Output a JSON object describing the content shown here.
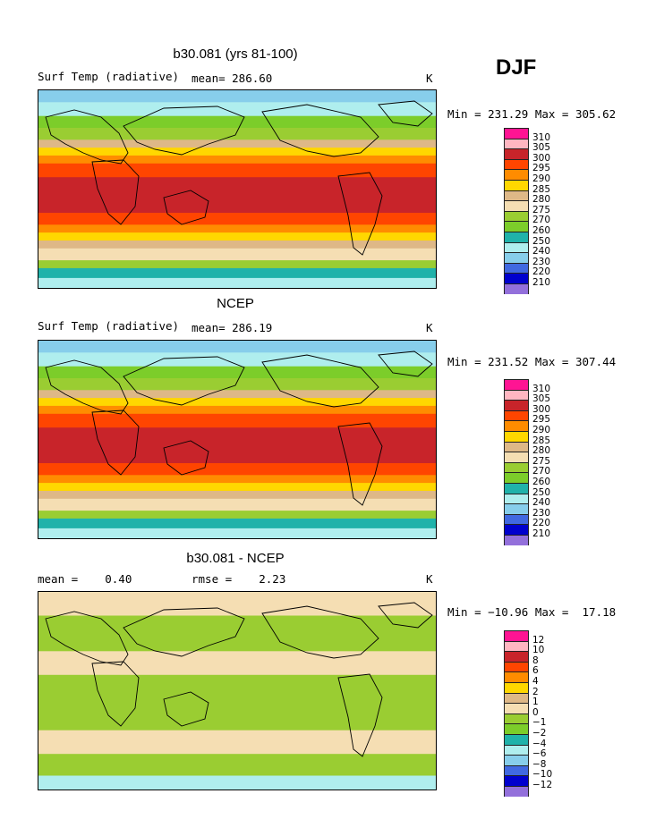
{
  "season": "DJF",
  "panels": [
    {
      "title": "b30.081 (yrs 81-100)",
      "left_label": "Surf Temp (radiative)",
      "center_label": "mean= 286.60",
      "units": "K",
      "minmax": "Min = 231.29 Max = 305.62",
      "kind": "field",
      "legend_labels": [
        "310",
        "305",
        "300",
        "295",
        "290",
        "285",
        "280",
        "275",
        "270",
        "260",
        "250",
        "240",
        "230",
        "220",
        "210"
      ]
    },
    {
      "title": "NCEP",
      "left_label": "Surf Temp (radiative)",
      "center_label": "mean= 286.19",
      "units": "K",
      "minmax": "Min = 231.52 Max = 307.44",
      "kind": "field",
      "legend_labels": [
        "310",
        "305",
        "300",
        "295",
        "290",
        "285",
        "280",
        "275",
        "270",
        "260",
        "250",
        "240",
        "230",
        "220",
        "210"
      ]
    },
    {
      "title": "b30.081 - NCEP",
      "left_label": "mean =    0.40",
      "center_label": "rmse =    2.23",
      "units": "K",
      "minmax": "Min = −10.96 Max =  17.18",
      "kind": "diff",
      "legend_labels": [
        "12",
        "10",
        "8",
        "6",
        "4",
        "2",
        "1",
        "0",
        "−1",
        "−2",
        "−4",
        "−6",
        "−8",
        "−10",
        "−12"
      ]
    }
  ],
  "legend_colors": [
    "#ff1493",
    "#ffb6c1",
    "#c8242a",
    "#ff4500",
    "#ff8c00",
    "#ffd700",
    "#deb887",
    "#f5deb3",
    "#9acd32",
    "#7ccd2a",
    "#20b2aa",
    "#afeeee",
    "#87ceeb",
    "#4169e1",
    "#0000cd",
    "#9370db"
  ]
}
